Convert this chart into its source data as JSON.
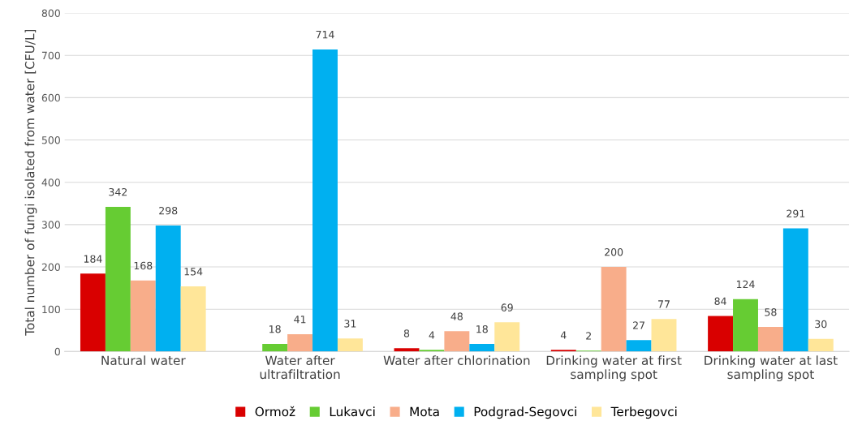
{
  "chart_data": {
    "type": "bar",
    "ylabel": "Total number of fungi isolated from water [CFU/L]",
    "categories": [
      "Natural water",
      "Water after\nultrafiltration",
      "Water after chlorination",
      "Drinking water at first\nsampling spot",
      "Drinking water at last\nsampling spot"
    ],
    "series": [
      {
        "name": "Ormož",
        "color": "#d90000",
        "values": [
          184,
          null,
          8,
          4,
          84
        ]
      },
      {
        "name": "Lukavci",
        "color": "#66cc33",
        "values": [
          342,
          18,
          4,
          2,
          124
        ]
      },
      {
        "name": "Mota",
        "color": "#f8ad8a",
        "values": [
          168,
          41,
          48,
          200,
          58
        ]
      },
      {
        "name": "Podgrad-Segovci",
        "color": "#00b0f0",
        "values": [
          298,
          714,
          18,
          27,
          291
        ]
      },
      {
        "name": "Terbegovci",
        "color": "#ffe699",
        "values": [
          154,
          31,
          69,
          77,
          30
        ]
      }
    ],
    "ylim": [
      0,
      800
    ],
    "yticks": [
      0,
      100,
      200,
      300,
      400,
      500,
      600,
      700,
      800
    ],
    "grid": "y",
    "legend": "bottom",
    "data_labels": true
  }
}
